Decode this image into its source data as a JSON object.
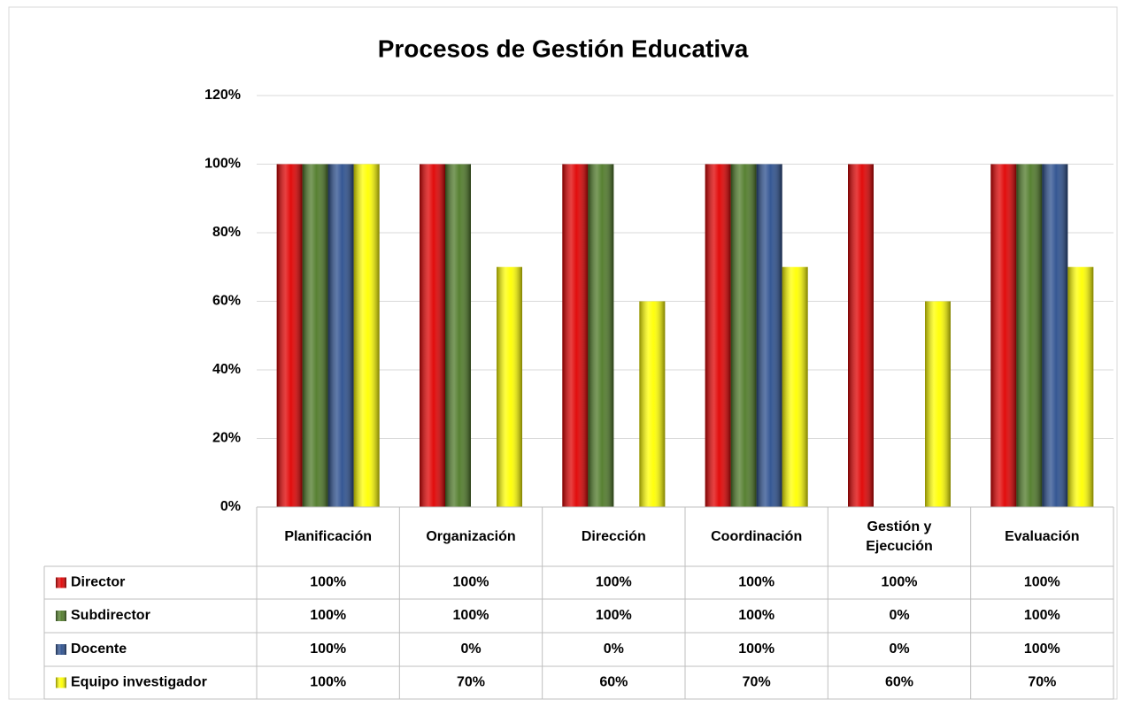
{
  "chart_data": {
    "type": "bar",
    "title": "Procesos de Gestión Educativa",
    "categories": [
      "Planificación",
      "Organización",
      "Dirección",
      "Coordinación",
      "Gestión y Ejecución",
      "Evaluación"
    ],
    "series": [
      {
        "name": "Director",
        "color": "#e00000",
        "values": [
          100,
          100,
          100,
          100,
          100,
          100
        ],
        "value_labels": [
          "100%",
          "100%",
          "100%",
          "100%",
          "100%",
          "100%"
        ]
      },
      {
        "name": "Subdirector",
        "color": "#4f7a28",
        "values": [
          100,
          100,
          100,
          100,
          0,
          100
        ],
        "value_labels": [
          "100%",
          "100%",
          "100%",
          "100%",
          "0%",
          "100%"
        ]
      },
      {
        "name": "Docente",
        "color": "#2b4f8e",
        "values": [
          100,
          0,
          0,
          100,
          0,
          100
        ],
        "value_labels": [
          "100%",
          "0%",
          "0%",
          "100%",
          "0%",
          "100%"
        ]
      },
      {
        "name": "Equipo investigador",
        "color": "#ffff00",
        "values": [
          100,
          70,
          60,
          70,
          60,
          70
        ],
        "value_labels": [
          "100%",
          "70%",
          "60%",
          "70%",
          "60%",
          "70%"
        ]
      }
    ],
    "ylim": [
      0,
      120
    ],
    "yticks": [
      {
        "value": 0,
        "label": "0%"
      },
      {
        "value": 20,
        "label": "20%"
      },
      {
        "value": 40,
        "label": "40%"
      },
      {
        "value": 60,
        "label": "60%"
      },
      {
        "value": 80,
        "label": "80%"
      },
      {
        "value": 100,
        "label": "100%"
      },
      {
        "value": 120,
        "label": "120%"
      }
    ],
    "grid": true
  }
}
